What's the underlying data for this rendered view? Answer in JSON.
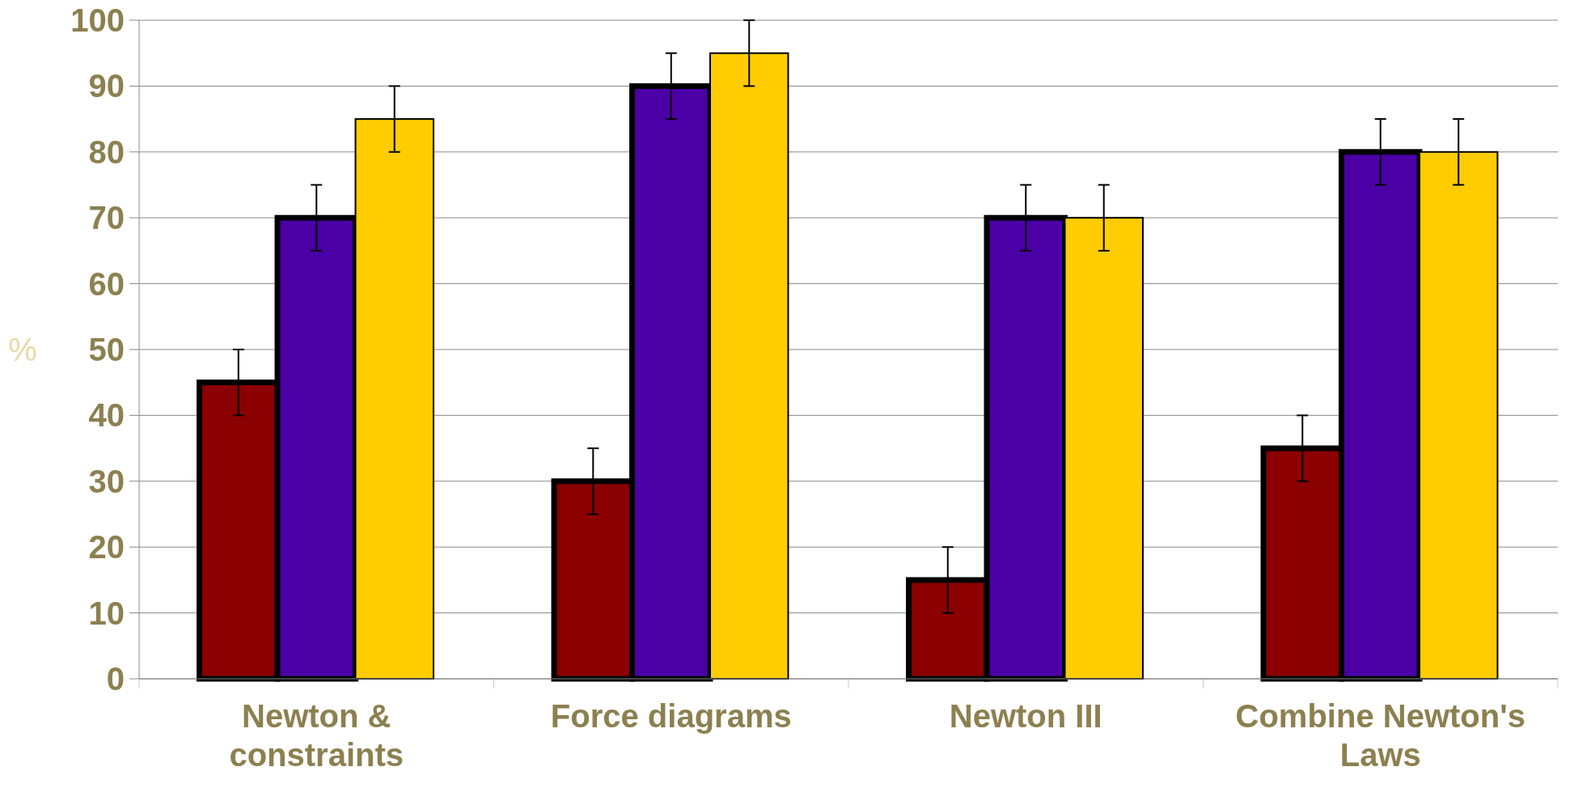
{
  "chart_data": {
    "type": "bar",
    "ylabel": "%",
    "categories": [
      "Newton & constraints",
      "Force diagrams",
      "Newton III",
      "Combine Newton's Laws"
    ],
    "series": [
      {
        "color": "#8b0000",
        "values": [
          45,
          30,
          15,
          35
        ],
        "errors": [
          5,
          5,
          5,
          5
        ]
      },
      {
        "color": "#4b00a6",
        "values": [
          70,
          90,
          70,
          80
        ],
        "errors": [
          5,
          5,
          5,
          5
        ]
      },
      {
        "color": "#ffcc00",
        "values": [
          85,
          95,
          70,
          80
        ],
        "errors": [
          5,
          5,
          5,
          5
        ]
      }
    ],
    "ylim": [
      0,
      100
    ],
    "yticks": [
      0,
      10,
      20,
      30,
      40,
      50,
      60,
      70,
      80,
      90,
      100
    ],
    "grid": "y"
  }
}
